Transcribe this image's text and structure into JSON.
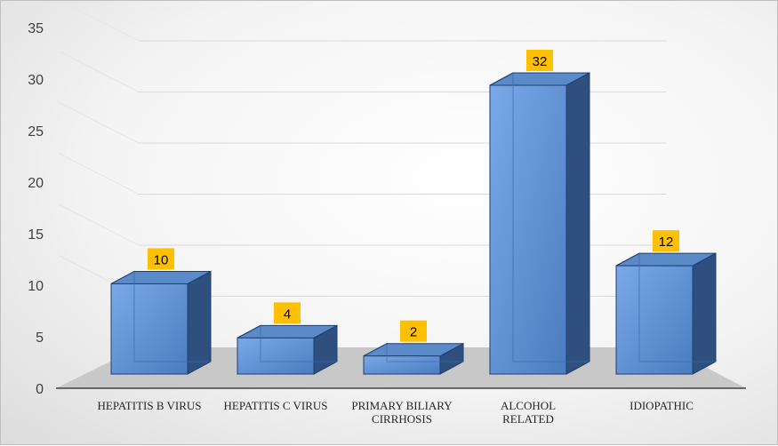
{
  "chart_data": {
    "type": "bar",
    "categories": [
      [
        "HEPATITIS B VIRUS"
      ],
      [
        "HEPATITIS C VIRUS"
      ],
      [
        "PRIMARY BILIARY",
        "CIRRHOSIS"
      ],
      [
        "ALCOHOL",
        "RELATED"
      ],
      [
        "IDIOPATHIC"
      ]
    ],
    "values": [
      10,
      4,
      2,
      32,
      12
    ],
    "ylim": [
      0,
      35
    ],
    "yticks": [
      0,
      5,
      10,
      15,
      20,
      25,
      30,
      35
    ],
    "data_labels": true,
    "grid": true,
    "bar_style": "3d",
    "colors": {
      "bar_front": "#5b8fd6",
      "bar_side": "#2f4f7f",
      "bar_top": "#5a8ac8",
      "bar_edge": "#1f3f6f",
      "label_bg": "#ffc000",
      "floor": "#c8c8c8",
      "grid": "#d9d9d9"
    }
  }
}
